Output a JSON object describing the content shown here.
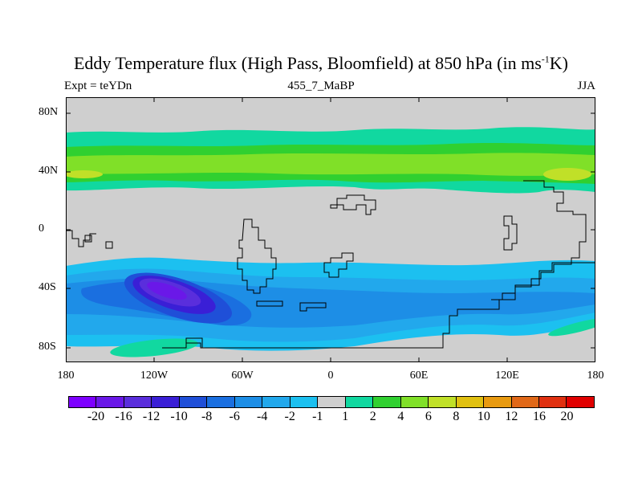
{
  "title": {
    "main": "Eddy Temperature flux (High Pass, Bloomfield) at 850 hPa (in ms",
    "sup": "-1",
    "tail": "K)"
  },
  "subtitle": {
    "left": "Expt = teYDn",
    "center": "455_7_MaBP",
    "right": "JJA"
  },
  "y_ticks": [
    "80N",
    "40N",
    "0",
    "40S",
    "80S"
  ],
  "x_ticks": [
    "180",
    "120W",
    "60W",
    "0",
    "60E",
    "120E",
    "180"
  ],
  "colorbar": {
    "colors": [
      "#7d00ff",
      "#6a18e8",
      "#5a2edc",
      "#3a1fd6",
      "#1f4fd8",
      "#1a6fe0",
      "#1d8ee6",
      "#22a8ec",
      "#1cc0f0",
      "#cfcfcf",
      "#11d8a0",
      "#30d030",
      "#80e028",
      "#c0e028",
      "#e0c010",
      "#e89a10",
      "#e06818",
      "#e03010",
      "#e00000"
    ],
    "labels": [
      "-20",
      "-16",
      "-12",
      "-10",
      "-8",
      "-6",
      "-4",
      "-2",
      "-1",
      "1",
      "2",
      "4",
      "6",
      "8",
      "10",
      "12",
      "16",
      "20"
    ]
  }
}
